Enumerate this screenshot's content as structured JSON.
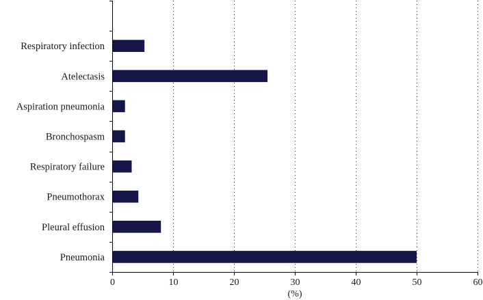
{
  "chart_data": {
    "type": "bar",
    "orientation": "horizontal",
    "title": "",
    "xlabel": "(%)",
    "ylabel": "",
    "xlim": [
      0,
      60
    ],
    "xticks": [
      0,
      10,
      20,
      30,
      40,
      50,
      60
    ],
    "grid": "vertical dotted",
    "legend": "none",
    "bar_color": "#16164a",
    "categories": [
      "",
      "Respiratory infection",
      "Atelectasis",
      "Aspiration pneumonia",
      "Bronchospasm",
      "Respiratory failure",
      "Pneumothorax",
      "Pleural effusion",
      "Pneumonia"
    ],
    "values": [
      0,
      5.3,
      25.5,
      2.1,
      2.1,
      3.2,
      4.3,
      8.0,
      50.0
    ]
  }
}
